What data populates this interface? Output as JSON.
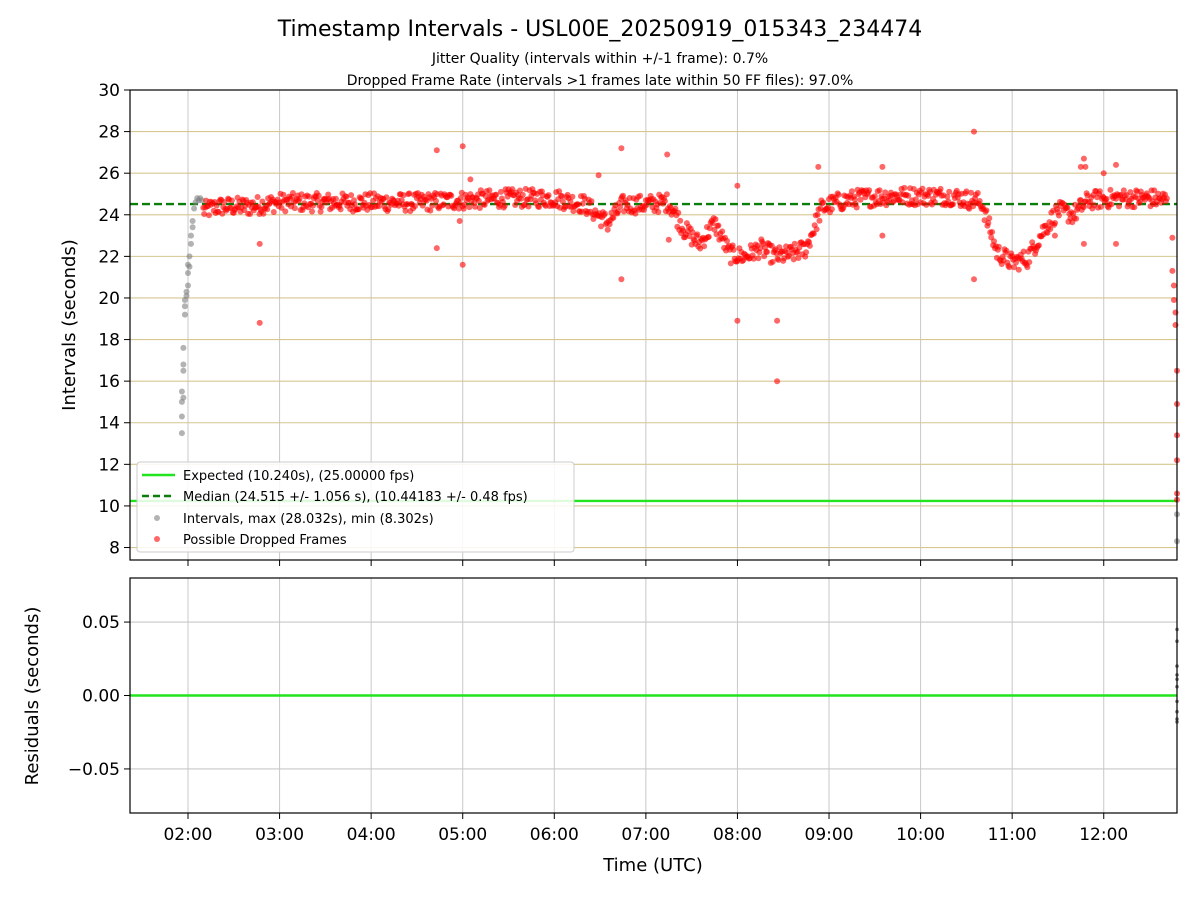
{
  "chart_data": {
    "type": "scatter",
    "title": "Timestamp Intervals - USL00E_20250919_015343_234474",
    "subtitle_lines": [
      "Jitter Quality (intervals within +/-1 frame): 0.7%",
      "Dropped Frame Rate (intervals >1 frames late within 50 FF files): 97.0%"
    ],
    "xlabel": "Time (UTC)",
    "xlim": [
      "01:22",
      "12:48"
    ],
    "x_ticks": [
      "02:00",
      "03:00",
      "04:00",
      "05:00",
      "06:00",
      "07:00",
      "08:00",
      "09:00",
      "10:00",
      "11:00",
      "12:00"
    ],
    "grid": true,
    "legend_position": "lower-left",
    "panels": [
      {
        "name": "intervals",
        "ylabel": "Intervals (seconds)",
        "ylim": [
          7.4,
          30
        ],
        "y_ticks": [
          "8",
          "10",
          "12",
          "14",
          "16",
          "18",
          "20",
          "22",
          "24",
          "26",
          "28",
          "30"
        ],
        "reference_lines": [
          {
            "label": "Expected (10.240s), (25.00000 fps)",
            "value": 10.24,
            "style": "solid",
            "color": "#22e41f"
          },
          {
            "label": "Median (24.515 +/- 1.056 s), (10.44183 +/- 0.48 fps)",
            "value": 24.515,
            "style": "dashed",
            "color": "#0a7d0a"
          }
        ],
        "series": [
          {
            "label": "Intervals, max (28.032s), min (8.302s)",
            "color": "#808080",
            "points": [
              [
                "01:56",
                13.5
              ],
              [
                "01:56",
                14.3
              ],
              [
                "01:56",
                15.0
              ],
              [
                "01:56",
                15.5
              ],
              [
                "01:57",
                15.2
              ],
              [
                "01:57",
                16.5
              ],
              [
                "01:57",
                16.8
              ],
              [
                "01:57",
                17.6
              ],
              [
                "01:58",
                19.2
              ],
              [
                "01:58",
                19.6
              ],
              [
                "01:58",
                19.9
              ],
              [
                "01:59",
                20.1
              ],
              [
                "01:59",
                20.3
              ],
              [
                "02:00",
                20.6
              ],
              [
                "02:00",
                21.2
              ],
              [
                "02:00",
                21.6
              ],
              [
                "02:01",
                21.5
              ],
              [
                "02:01",
                22.0
              ],
              [
                "02:02",
                22.6
              ],
              [
                "02:02",
                23.0
              ],
              [
                "02:03",
                23.4
              ],
              [
                "02:03",
                23.7
              ],
              [
                "02:04",
                24.3
              ],
              [
                "02:05",
                24.6
              ],
              [
                "02:06",
                24.8
              ],
              [
                "02:07",
                24.7
              ],
              [
                "02:08",
                24.8
              ],
              [
                "02:09",
                24.7
              ],
              [
                "12:48",
                9.6
              ],
              [
                "12:48",
                8.3
              ]
            ]
          },
          {
            "label": "Possible Dropped Frames",
            "color": "#ff0000",
            "points": [
              [
                "02:47",
                18.8
              ],
              [
                "02:47",
                22.6
              ],
              [
                "04:43",
                27.1
              ],
              [
                "04:43",
                22.4
              ],
              [
                "05:00",
                27.3
              ],
              [
                "05:00",
                21.6
              ],
              [
                "04:58",
                23.7
              ],
              [
                "05:05",
                25.7
              ],
              [
                "06:29",
                25.9
              ],
              [
                "06:44",
                27.2
              ],
              [
                "06:44",
                20.9
              ],
              [
                "07:14",
                26.9
              ],
              [
                "07:15",
                22.8
              ],
              [
                "08:00",
                25.4
              ],
              [
                "08:00",
                18.9
              ],
              [
                "08:26",
                18.9
              ],
              [
                "08:26",
                16.0
              ],
              [
                "08:53",
                26.3
              ],
              [
                "09:35",
                26.3
              ],
              [
                "09:35",
                23.0
              ],
              [
                "10:35",
                28.0
              ],
              [
                "10:35",
                20.9
              ],
              [
                "11:28",
                23.0
              ],
              [
                "11:45",
                26.3
              ],
              [
                "11:47",
                26.7
              ],
              [
                "11:47",
                22.6
              ],
              [
                "11:48",
                26.3
              ],
              [
                "12:00",
                26.0
              ],
              [
                "12:08",
                26.4
              ],
              [
                "12:08",
                22.6
              ],
              [
                "12:45",
                22.9
              ],
              [
                "12:45",
                21.3
              ],
              [
                "12:46",
                20.6
              ],
              [
                "12:46",
                19.9
              ],
              [
                "12:47",
                19.3
              ],
              [
                "12:47",
                18.7
              ],
              [
                "12:48",
                16.5
              ],
              [
                "12:48",
                14.9
              ],
              [
                "12:48",
                13.4
              ],
              [
                "12:48",
                12.2
              ],
              [
                "12:48",
                10.6
              ],
              [
                "12:48",
                10.3
              ]
            ],
            "dense_band": [
              [
                "02:10",
                24.2
              ],
              [
                "02:20",
                24.4
              ],
              [
                "02:40",
                24.4
              ],
              [
                "03:00",
                24.6
              ],
              [
                "03:30",
                24.6
              ],
              [
                "04:00",
                24.6
              ],
              [
                "04:30",
                24.6
              ],
              [
                "05:00",
                24.7
              ],
              [
                "05:30",
                24.8
              ],
              [
                "06:00",
                24.8
              ],
              [
                "06:20",
                24.5
              ],
              [
                "06:35",
                23.6
              ],
              [
                "06:45",
                24.5
              ],
              [
                "07:00",
                24.5
              ],
              [
                "07:15",
                24.6
              ],
              [
                "07:25",
                23.3
              ],
              [
                "07:35",
                22.6
              ],
              [
                "07:45",
                23.6
              ],
              [
                "07:55",
                22.1
              ],
              [
                "08:05",
                22.0
              ],
              [
                "08:15",
                22.4
              ],
              [
                "08:25",
                22.0
              ],
              [
                "08:35",
                22.1
              ],
              [
                "08:45",
                22.4
              ],
              [
                "08:55",
                24.3
              ],
              [
                "09:05",
                24.6
              ],
              [
                "09:20",
                24.8
              ],
              [
                "09:40",
                24.9
              ],
              [
                "10:00",
                24.9
              ],
              [
                "10:20",
                24.9
              ],
              [
                "10:40",
                24.6
              ],
              [
                "10:50",
                22.2
              ],
              [
                "11:00",
                21.7
              ],
              [
                "11:10",
                21.9
              ],
              [
                "11:20",
                23.2
              ],
              [
                "11:30",
                24.2
              ],
              [
                "11:40",
                24.0
              ],
              [
                "11:50",
                24.7
              ],
              [
                "12:10",
                24.8
              ],
              [
                "12:30",
                24.8
              ],
              [
                "12:42",
                24.7
              ]
            ]
          }
        ]
      },
      {
        "name": "residuals",
        "ylabel": "Residuals (seconds)",
        "ylim": [
          -0.08,
          0.08
        ],
        "y_ticks": [
          "−0.05",
          "0.00",
          "0.05"
        ],
        "reference_lines": [
          {
            "value": 0.0,
            "style": "solid",
            "color": "#22e41f"
          }
        ],
        "series": [
          {
            "color": "#555555",
            "points": [
              [
                "12:48",
                0.045
              ],
              [
                "12:48",
                0.037
              ],
              [
                "12:48",
                0.02
              ],
              [
                "12:48",
                0.014
              ],
              [
                "12:48",
                0.011
              ],
              [
                "12:48",
                0.006
              ],
              [
                "12:48",
                -0.004
              ],
              [
                "12:48",
                -0.011
              ],
              [
                "12:48",
                -0.016
              ],
              [
                "12:48",
                -0.018
              ]
            ]
          }
        ]
      }
    ]
  }
}
